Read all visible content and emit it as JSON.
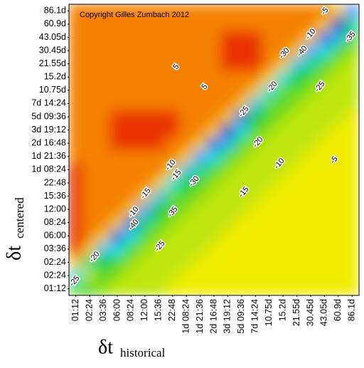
{
  "chart_data": {
    "type": "heatmap",
    "annotation": "Copyright Gilles Zumbach 2012",
    "xlabel": "δt",
    "xlabel_sub": "historical",
    "ylabel": "δt",
    "ylabel_sub": "centered",
    "x": [
      "01:12",
      "02:24",
      "03:36",
      "06:00",
      "08:24",
      "12:00",
      "15:36",
      "22:48",
      "1d 08:24",
      "1d 21:36",
      "2d 16:48",
      "3d 19:12",
      "5d 09:36",
      "7d 14:24",
      "10.75d",
      "15.2d",
      "21.55d",
      "30.45d",
      "43.05d",
      "60.9d",
      "86.1d"
    ],
    "y": [
      "01:12",
      "02:24",
      "02:24",
      "03:36",
      "06:00",
      "08:24",
      "12:00",
      "15:36",
      "22:48",
      "1d 08:24",
      "1d 21:36",
      "2d 16:48",
      "3d 19:12",
      "5d 09:36",
      "7d 14:24",
      "10.75d",
      "15.2d",
      "21.55d",
      "30.45d",
      "43.05d",
      "60.9d",
      "86.1d"
    ],
    "colorscale": [
      [
        -45,
        "#0018d0"
      ],
      [
        -35,
        "#3c9cff"
      ],
      [
        -25,
        "#00e0e8"
      ],
      [
        -15,
        "#10d040"
      ],
      [
        -8,
        "#90e010"
      ],
      [
        -2,
        "#f0ec00"
      ],
      [
        3,
        "#f8a000"
      ],
      [
        8,
        "#f05000"
      ],
      [
        12,
        "#e01000"
      ]
    ],
    "z": [
      [
        -10,
        -12,
        -8,
        -5,
        -5,
        -5,
        -5,
        -2,
        -2,
        -2,
        -2,
        -2,
        -2,
        -2,
        -2,
        -2,
        -2,
        -2,
        -2,
        -2,
        -2
      ],
      [
        -25,
        -5,
        -12,
        -8,
        -5,
        -5,
        -5,
        -5,
        -2,
        -2,
        -2,
        -2,
        -2,
        -2,
        -2,
        -2,
        -2,
        -2,
        -2,
        -2,
        -2
      ],
      [
        0,
        -20,
        -15,
        -12,
        -8,
        -5,
        -5,
        -5,
        -5,
        -2,
        -2,
        -2,
        -2,
        -2,
        -2,
        -2,
        -2,
        -2,
        -2,
        -2,
        -2
      ],
      [
        10,
        0,
        -30,
        -25,
        -12,
        -8,
        -5,
        -5,
        -5,
        -5,
        -2,
        -2,
        -2,
        -2,
        -2,
        -2,
        -2,
        -2,
        -2,
        -2,
        -2
      ],
      [
        10,
        5,
        0,
        -40,
        -25,
        -12,
        -8,
        -5,
        -5,
        -5,
        -5,
        -2,
        -2,
        -2,
        -2,
        -2,
        -2,
        -2,
        -2,
        -2,
        -2
      ],
      [
        10,
        5,
        5,
        0,
        -40,
        -20,
        -12,
        -8,
        -5,
        -5,
        -5,
        -5,
        -2,
        -2,
        -2,
        -2,
        -2,
        -2,
        -2,
        -2,
        -2
      ],
      [
        10,
        5,
        5,
        5,
        0,
        -35,
        -15,
        -12,
        -8,
        -5,
        -5,
        -5,
        -5,
        -2,
        -2,
        -2,
        -2,
        -2,
        -2,
        -2,
        -2
      ],
      [
        10,
        5,
        5,
        5,
        5,
        0,
        -30,
        -10,
        -12,
        -8,
        -5,
        -5,
        -5,
        -5,
        -2,
        -2,
        -2,
        -2,
        -2,
        -2,
        -2
      ],
      [
        10,
        5,
        5,
        5,
        5,
        5,
        0,
        -25,
        -15,
        -12,
        -8,
        -5,
        -5,
        -5,
        -5,
        -2,
        -2,
        -2,
        -2,
        -2,
        -2
      ],
      [
        10,
        5,
        5,
        5,
        5,
        5,
        5,
        0,
        -30,
        -20,
        -12,
        -8,
        -5,
        -5,
        -5,
        -5,
        -2,
        -2,
        -2,
        -2,
        -2
      ],
      [
        5,
        5,
        5,
        5,
        5,
        5,
        5,
        5,
        0,
        -35,
        -25,
        -12,
        -8,
        -5,
        -5,
        -5,
        -5,
        -2,
        -2,
        -2,
        -2
      ],
      [
        5,
        5,
        5,
        10,
        10,
        10,
        10,
        5,
        5,
        0,
        -40,
        -30,
        -12,
        -8,
        -5,
        -5,
        -5,
        -5,
        -2,
        -2,
        -2
      ],
      [
        5,
        5,
        5,
        10,
        10,
        10,
        10,
        10,
        5,
        5,
        0,
        -45,
        -25,
        -12,
        -8,
        -5,
        -5,
        -5,
        -5,
        -2,
        -2
      ],
      [
        5,
        5,
        5,
        10,
        10,
        10,
        10,
        10,
        5,
        5,
        5,
        0,
        -40,
        -15,
        -12,
        -8,
        -5,
        -5,
        -5,
        -5,
        -2
      ],
      [
        5,
        5,
        5,
        5,
        5,
        5,
        5,
        5,
        5,
        5,
        5,
        5,
        0,
        -30,
        -10,
        -12,
        -8,
        -5,
        -5,
        -5,
        -5
      ],
      [
        5,
        5,
        5,
        5,
        5,
        5,
        5,
        5,
        5,
        5,
        5,
        5,
        5,
        0,
        -25,
        -10,
        -12,
        -8,
        -5,
        -5,
        -5
      ],
      [
        5,
        5,
        5,
        5,
        5,
        5,
        5,
        5,
        5,
        5,
        5,
        5,
        5,
        5,
        0,
        -25,
        -15,
        -12,
        -8,
        -5,
        -5
      ],
      [
        5,
        5,
        5,
        5,
        5,
        5,
        5,
        5,
        5,
        5,
        5,
        10,
        10,
        10,
        5,
        0,
        -30,
        -20,
        -12,
        -8,
        -5
      ],
      [
        5,
        5,
        5,
        5,
        5,
        5,
        5,
        5,
        5,
        5,
        5,
        10,
        10,
        10,
        5,
        5,
        0,
        -35,
        -25,
        -12,
        -8
      ],
      [
        5,
        5,
        5,
        5,
        5,
        5,
        5,
        5,
        5,
        5,
        5,
        10,
        10,
        10,
        5,
        5,
        5,
        0,
        -40,
        -30,
        -12
      ],
      [
        5,
        5,
        5,
        5,
        5,
        5,
        5,
        5,
        5,
        5,
        5,
        5,
        5,
        5,
        5,
        5,
        5,
        5,
        0,
        -45,
        -20
      ],
      [
        5,
        5,
        5,
        5,
        5,
        5,
        5,
        5,
        5,
        5,
        5,
        5,
        5,
        5,
        5,
        5,
        5,
        5,
        5,
        0,
        -35
      ]
    ],
    "contour_labels": [
      "5",
      "5",
      "-5",
      "-10",
      "-15",
      "-20",
      "-25",
      "-30",
      "-40",
      "-10",
      "-25",
      "-20",
      "-30",
      "-35",
      "-10",
      "-15",
      "-40",
      "-10",
      "-25",
      "-20",
      "-25",
      "-35",
      "-5",
      "-15"
    ]
  }
}
